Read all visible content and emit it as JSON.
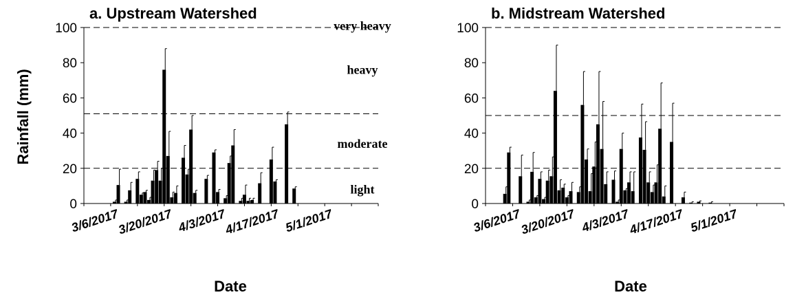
{
  "chart_data": [
    {
      "type": "bar",
      "title": "a. Upstream Watershed",
      "xlabel": "Date",
      "ylabel": "Rainfall (mm)",
      "ylim": [
        0,
        100
      ],
      "yticks": [
        "0",
        "20",
        "40",
        "60",
        "80",
        "100"
      ],
      "xticks": [
        {
          "label": "3/6/2017",
          "date": "2017-03-06"
        },
        {
          "label": "3/20/2017",
          "date": "2017-03-20"
        },
        {
          "label": "4/3/2017",
          "date": "2017-04-03"
        },
        {
          "label": "4/17/2017",
          "date": "2017-04-17"
        },
        {
          "label": "5/1/2017",
          "date": "2017-05-01"
        }
      ],
      "xrange": [
        "2017-02-27",
        "2017-05-15"
      ],
      "thresholds": [
        20,
        51,
        100
      ],
      "bands": [
        {
          "label": "very heavy",
          "value": 101
        },
        {
          "label": "heavy",
          "value": 76
        },
        {
          "label": "moderate",
          "value": 34
        },
        {
          "label": "light",
          "value": 8
        }
      ],
      "series": [
        {
          "x": [
            "2017-03-07",
            "2017-03-08",
            "2017-03-10",
            "2017-03-11",
            "2017-03-13",
            "2017-03-14",
            "2017-03-15",
            "2017-03-16",
            "2017-03-17",
            "2017-03-18",
            "2017-03-19",
            "2017-03-20",
            "2017-03-21",
            "2017-03-22",
            "2017-03-23",
            "2017-03-25",
            "2017-03-26",
            "2017-03-27",
            "2017-03-28",
            "2017-03-31",
            "2017-04-02",
            "2017-04-03",
            "2017-04-05",
            "2017-04-06",
            "2017-04-07",
            "2017-04-09",
            "2017-04-10",
            "2017-04-11",
            "2017-04-12",
            "2017-04-14",
            "2017-04-17",
            "2017-04-18",
            "2017-04-21",
            "2017-04-23",
            "2017-04-27",
            "2017-05-02",
            "2017-05-05"
          ],
          "values": [
            1,
            10.5,
            1,
            7.5,
            14,
            5,
            6.5,
            2,
            13,
            19,
            13,
            76,
            27,
            3.5,
            6,
            26,
            16.5,
            42,
            6,
            14,
            29,
            6.5,
            3,
            23,
            33,
            1.5,
            5,
            1.5,
            2,
            11.5,
            25,
            12.5,
            45,
            8.5,
            0,
            0,
            0
          ],
          "errors": [
            1,
            9,
            1,
            4.5,
            4,
            1,
            1,
            1.5,
            6,
            5,
            7,
            12,
            14,
            3,
            4,
            7,
            3,
            8,
            1.5,
            2,
            1.5,
            1.5,
            1.5,
            4,
            9,
            1.5,
            5.5,
            1.5,
            1,
            6,
            7,
            1,
            7,
            1,
            0,
            0,
            0
          ]
        }
      ]
    },
    {
      "type": "bar",
      "title": "b. Midstream Watershed",
      "xlabel": "Date",
      "ylim": [
        0,
        100
      ],
      "yticks": [
        "0",
        "20",
        "40",
        "60",
        "80",
        "100"
      ],
      "xticks": [
        {
          "label": "3/6/2017",
          "date": "2017-03-06"
        },
        {
          "label": "3/20/2017",
          "date": "2017-03-20"
        },
        {
          "label": "4/3/2017",
          "date": "2017-04-03"
        },
        {
          "label": "4/17/2017",
          "date": "2017-04-17"
        },
        {
          "label": "5/1/2017",
          "date": "2017-05-01"
        }
      ],
      "xrange": [
        "2017-02-27",
        "2017-05-15"
      ],
      "thresholds": [
        20,
        50,
        100
      ],
      "series": [
        {
          "x": [
            "2017-03-04",
            "2017-03-05",
            "2017-03-08",
            "2017-03-10",
            "2017-03-11",
            "2017-03-12",
            "2017-03-13",
            "2017-03-14",
            "2017-03-15",
            "2017-03-16",
            "2017-03-17",
            "2017-03-18",
            "2017-03-19",
            "2017-03-20",
            "2017-03-21",
            "2017-03-23",
            "2017-03-24",
            "2017-03-25",
            "2017-03-26",
            "2017-03-27",
            "2017-03-28",
            "2017-03-29",
            "2017-03-30",
            "2017-04-01",
            "2017-04-02",
            "2017-04-03",
            "2017-04-04",
            "2017-04-05",
            "2017-04-06",
            "2017-04-08",
            "2017-04-09",
            "2017-04-10",
            "2017-04-11",
            "2017-04-12",
            "2017-04-13",
            "2017-04-14",
            "2017-04-16",
            "2017-04-19",
            "2017-04-21",
            "2017-04-23",
            "2017-04-26",
            "2017-04-28",
            "2017-04-30",
            "2017-05-03",
            "2017-05-05",
            "2017-05-08",
            "2017-05-12"
          ],
          "values": [
            5.5,
            29,
            15.5,
            1,
            18,
            3.5,
            14,
            2.5,
            13,
            15.5,
            64,
            7.5,
            9,
            3.5,
            7,
            6.5,
            56,
            25,
            7,
            21,
            45,
            31,
            11,
            13.5,
            1,
            31,
            7.5,
            12,
            7,
            37.5,
            30.5,
            12,
            6.5,
            12,
            42.5,
            4,
            35,
            3.5,
            0.5,
            1,
            0.5,
            0,
            0,
            0,
            0,
            0,
            0
          ],
          "errors": [
            4,
            3,
            12,
            1,
            11,
            1,
            4,
            1,
            6,
            11,
            26,
            6,
            2,
            1,
            5,
            3,
            19,
            6,
            10,
            14,
            30,
            27,
            7,
            5,
            1,
            9,
            1,
            6,
            11,
            19,
            16,
            6,
            4,
            10,
            26,
            6,
            22,
            3,
            0.5,
            0.5,
            0.5,
            0,
            0,
            0,
            0,
            0,
            0
          ]
        }
      ]
    }
  ]
}
